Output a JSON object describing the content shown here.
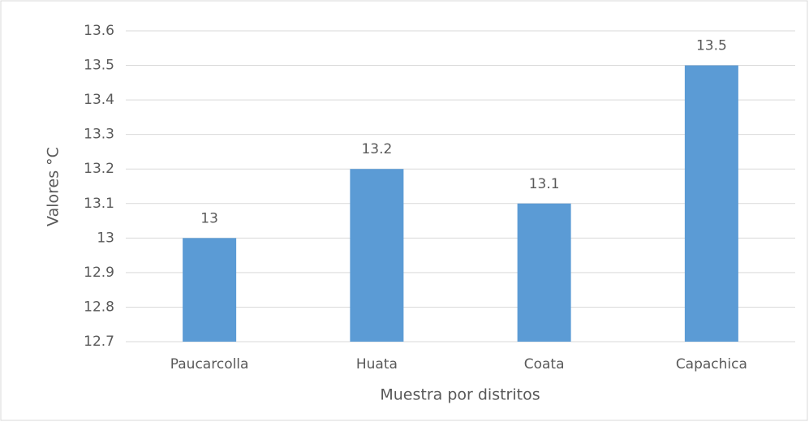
{
  "chart_data": {
    "type": "bar",
    "categories": [
      "Paucarcolla",
      "Huata",
      "Coata",
      "Capachica"
    ],
    "values": [
      13,
      13.2,
      13.1,
      13.5
    ],
    "color": "#5b9bd5",
    "ylim": [
      12.7,
      13.6
    ],
    "yticks": [
      12.7,
      12.8,
      12.9,
      13,
      13.1,
      13.2,
      13.3,
      13.4,
      13.5,
      13.6
    ],
    "grid": true,
    "y_label": "Valores °C",
    "x_label": "Muestra por distritos"
  }
}
